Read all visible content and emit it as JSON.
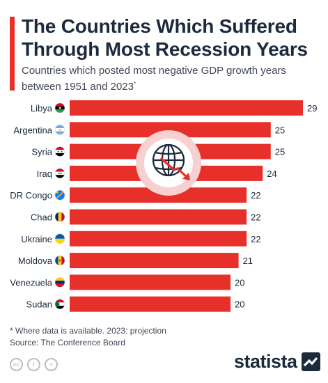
{
  "header": {
    "title": "The Countries Which Suffered Through Most Recession Years",
    "subtitle": "Countries which posted most negative GDP growth years between 1951 and 2023",
    "subtitle_mark": "*"
  },
  "chart_data": {
    "type": "bar",
    "orientation": "horizontal",
    "categories": [
      "Libya",
      "Argentina",
      "Syria",
      "Iraq",
      "DR Congo",
      "Chad",
      "Ukraine",
      "Moldova",
      "Venezuela",
      "Sudan"
    ],
    "values": [
      29,
      25,
      25,
      24,
      22,
      22,
      22,
      21,
      20,
      20
    ],
    "data_labels": true,
    "bar_color": "#e8302a",
    "icon": "globe-with-declining-arrow-icon"
  },
  "footer": {
    "note": "* Where data is available. 2023: projection",
    "source": "Source: The Conference Board",
    "logo_text": "statista"
  },
  "colors": {
    "accent": "#e8302a",
    "text": "#1b2a3d",
    "bar": "#e8302a"
  },
  "flags": [
    {
      "country": "Libya",
      "icon": "flag-libya-icon"
    },
    {
      "country": "Argentina",
      "icon": "flag-argentina-icon"
    },
    {
      "country": "Syria",
      "icon": "flag-syria-icon"
    },
    {
      "country": "Iraq",
      "icon": "flag-iraq-icon"
    },
    {
      "country": "DR Congo",
      "icon": "flag-dr-congo-icon"
    },
    {
      "country": "Chad",
      "icon": "flag-chad-icon"
    },
    {
      "country": "Ukraine",
      "icon": "flag-ukraine-icon"
    },
    {
      "country": "Moldova",
      "icon": "flag-moldova-icon"
    },
    {
      "country": "Venezuela",
      "icon": "flag-venezuela-icon"
    },
    {
      "country": "Sudan",
      "icon": "flag-sudan-icon"
    }
  ]
}
